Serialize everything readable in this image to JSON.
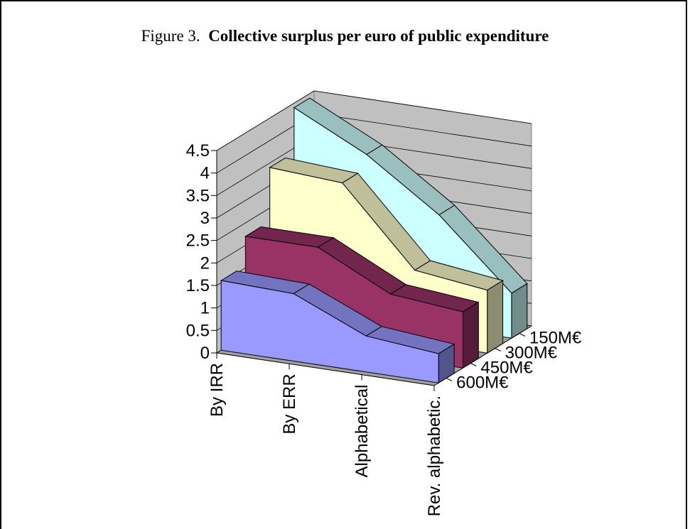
{
  "title": {
    "prefix": "Figure 3.",
    "main": "Collective surplus per euro of public expenditure"
  },
  "chart_data": {
    "type": "area",
    "three_d": true,
    "title": "Collective surplus per euro of public expenditure",
    "categories": [
      "By IRR",
      "By ERR",
      "Alphabetical",
      "Rev. alphabetic."
    ],
    "yticks": [
      "0",
      "0.5",
      "1",
      "1.5",
      "2",
      "2.5",
      "3",
      "3.5",
      "4",
      "4.5"
    ],
    "ylim": [
      0,
      4.5
    ],
    "grid": true,
    "series": [
      {
        "name": "150M€",
        "values": [
          4.4,
          3.6,
          2.5,
          1.0
        ],
        "color": "#CCFFFF"
      },
      {
        "name": "300M€",
        "values": [
          3.4,
          3.3,
          1.6,
          1.4
        ],
        "color": "#FFFFCC"
      },
      {
        "name": "450M€",
        "values": [
          2.2,
          2.2,
          1.4,
          1.25
        ],
        "color": "#993366"
      },
      {
        "name": "600M€",
        "values": [
          1.55,
          1.5,
          0.8,
          0.65
        ],
        "color": "#9999FF"
      }
    ]
  }
}
